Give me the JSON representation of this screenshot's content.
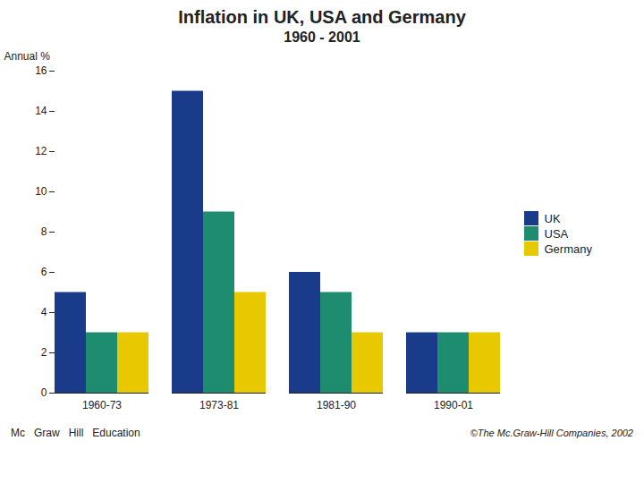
{
  "chart_data": {
    "type": "bar",
    "title": "Inflation in UK, USA and Germany",
    "subtitle": "1960 - 2001",
    "y_label": "Annual %",
    "categories": [
      "1960-73",
      "1973-81",
      "1981-90",
      "1990-01"
    ],
    "series": [
      {
        "name": "UK",
        "color": "#1a3a8a",
        "values": [
          5.0,
          15.0,
          6.0,
          3.0
        ]
      },
      {
        "name": "USA",
        "color": "#1e8c6e",
        "values": [
          3.0,
          9.0,
          5.0,
          3.0
        ]
      },
      {
        "name": "Germany",
        "color": "#e8c800",
        "values": [
          3.0,
          5.0,
          3.0,
          3.0
        ]
      }
    ],
    "ylim": [
      0,
      16
    ],
    "yticks": [
      0,
      2,
      4,
      6,
      8,
      10,
      12,
      14,
      16
    ],
    "grid": false,
    "legend": "right",
    "annotations": [
      "Mc",
      "Graw",
      "Hill",
      "Education",
      "©The Mc.Graw-Hill Companies, 2002"
    ]
  }
}
